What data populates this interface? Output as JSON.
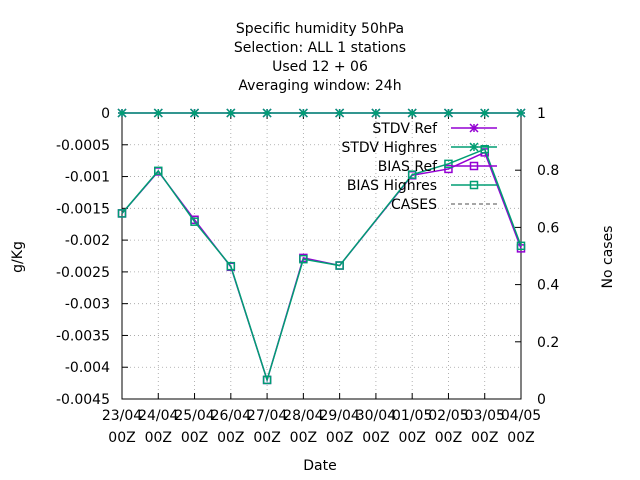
{
  "chart_data": {
    "type": "line",
    "title_lines": [
      "Specific humidity 50hPa",
      "Selection: ALL      1 stations",
      "Used  12 + 06",
      "Averaging window: 24h"
    ],
    "xlabel": "Date",
    "ylabel": "g/Kg",
    "y2label": "No cases",
    "x_ticks": [
      [
        "23/04",
        "00Z"
      ],
      [
        "24/04",
        "00Z"
      ],
      [
        "25/04",
        "00Z"
      ],
      [
        "26/04",
        "00Z"
      ],
      [
        "27/04",
        "00Z"
      ],
      [
        "28/04",
        "00Z"
      ],
      [
        "29/04",
        "00Z"
      ],
      [
        "30/04",
        "00Z"
      ],
      [
        "01/05",
        "00Z"
      ],
      [
        "02/05",
        "00Z"
      ],
      [
        "03/05",
        "00Z"
      ],
      [
        "04/05",
        "00Z"
      ]
    ],
    "ylim": [
      -0.0045,
      0
    ],
    "y_ticks": [
      "0",
      "-0.0005",
      "-0.001",
      "-0.0015",
      "-0.002",
      "-0.0025",
      "-0.003",
      "-0.0035",
      "-0.004",
      "-0.0045"
    ],
    "y2lim": [
      0,
      1
    ],
    "y2_ticks": [
      "0",
      "0.2",
      "0.4",
      "0.6",
      "0.8",
      "1"
    ],
    "grid": true,
    "legend_position": "top-right",
    "series": [
      {
        "name": "STDV Ref",
        "color": "#9400d3",
        "marker": "star",
        "axis": "y",
        "x": [
          0,
          1,
          2,
          3,
          4,
          5,
          6,
          7,
          8,
          9,
          10,
          11
        ],
        "values": [
          0,
          0,
          0,
          0,
          0,
          0,
          0,
          0,
          0,
          0,
          0,
          0
        ]
      },
      {
        "name": "STDV Highres",
        "color": "#009e73",
        "marker": "star",
        "axis": "y",
        "x": [
          0,
          1,
          2,
          3,
          4,
          5,
          6,
          7,
          8,
          9,
          10,
          11
        ],
        "values": [
          0,
          0,
          0,
          0,
          0,
          0,
          0,
          0,
          0,
          0,
          0,
          0
        ]
      },
      {
        "name": "BIAS Ref",
        "color": "#9400d3",
        "marker": "square",
        "axis": "y",
        "x": [
          0,
          1,
          2,
          3,
          4,
          5,
          6,
          8,
          9,
          10,
          11
        ],
        "values": [
          -0.00158,
          -0.00092,
          -0.00168,
          -0.00242,
          -0.0042,
          -0.00228,
          -0.0024,
          -0.00098,
          -0.00088,
          -0.00062,
          -0.00213
        ]
      },
      {
        "name": "BIAS Highres",
        "color": "#009e73",
        "marker": "square",
        "axis": "y",
        "x": [
          0,
          1,
          2,
          3,
          4,
          5,
          6,
          8,
          9,
          10,
          11
        ],
        "values": [
          -0.00158,
          -0.00091,
          -0.00171,
          -0.00241,
          -0.0042,
          -0.0023,
          -0.0024,
          -0.00097,
          -0.0008,
          -0.00057,
          -0.00209
        ]
      },
      {
        "name": "CASES",
        "color": "#888888",
        "marker": "none",
        "axis": "y2",
        "dashed": true,
        "x": [],
        "values": []
      }
    ]
  }
}
